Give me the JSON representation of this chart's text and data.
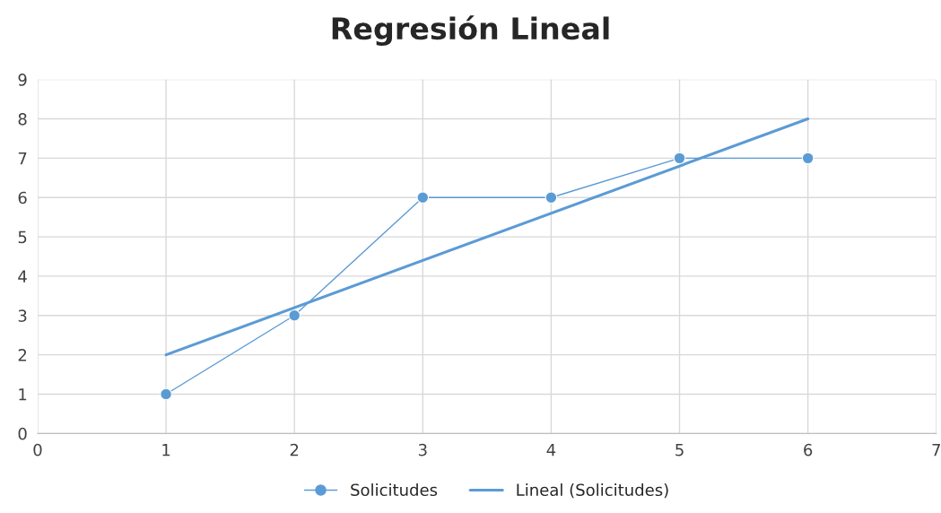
{
  "chart_data": {
    "type": "line",
    "title": "Regresión Lineal",
    "x": [
      1,
      2,
      3,
      4,
      5,
      6
    ],
    "series": [
      {
        "name": "Solicitudes",
        "color": "#5b9bd5",
        "values": [
          1,
          3,
          6,
          6,
          7,
          7
        ],
        "marker": "circle"
      },
      {
        "name": "Lineal (Solicitudes)",
        "color": "#5b9bd5",
        "type": "line",
        "x": [
          1,
          6
        ],
        "values": [
          2,
          8
        ],
        "marker": "none"
      }
    ],
    "xlim": [
      0,
      7
    ],
    "xticks": [
      0,
      1,
      2,
      3,
      4,
      5,
      6,
      7
    ],
    "ylim": [
      0,
      9
    ],
    "yticks": [
      0,
      1,
      2,
      3,
      4,
      5,
      6,
      7,
      8,
      9
    ],
    "grid": true,
    "legend": "bottom",
    "line_style": "solid"
  }
}
